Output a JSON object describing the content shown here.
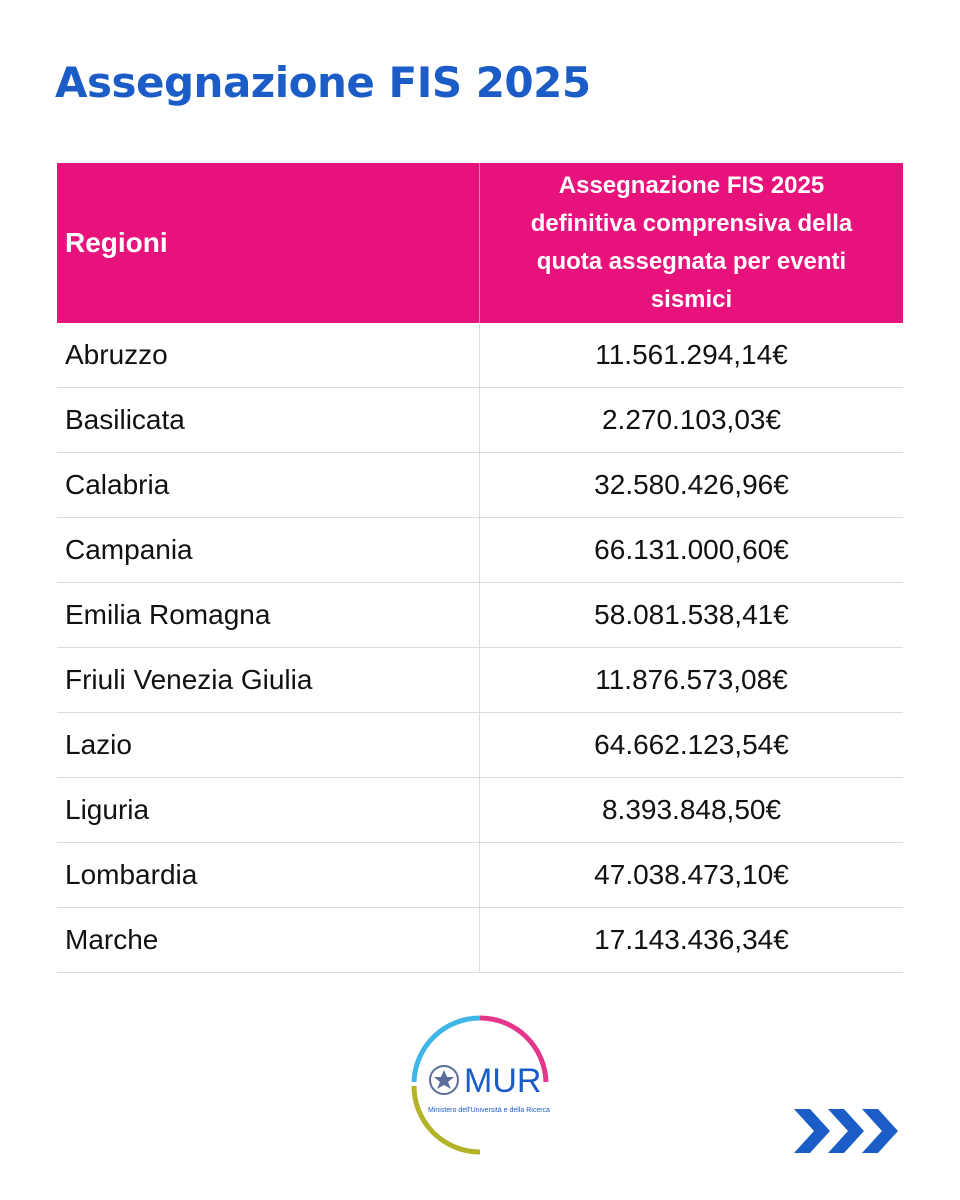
{
  "header": {
    "title": "Assegnazione FIS 2025"
  },
  "table": {
    "columns": [
      "Regioni",
      "Assegnazione FIS 2025 definitiva comprensiva della quota assegnata per eventi sismici"
    ],
    "rows": [
      [
        "Abruzzo",
        "11.561.294,14€"
      ],
      [
        "Basilicata",
        "2.270.103,03€"
      ],
      [
        "Calabria",
        "32.580.426,96€"
      ],
      [
        "Campania",
        "66.131.000,60€"
      ],
      [
        "Emilia Romagna",
        "58.081.538,41€"
      ],
      [
        "Friuli Venezia Giulia",
        "11.876.573,08€"
      ],
      [
        "Lazio",
        "64.662.123,54€"
      ],
      [
        "Liguria",
        "8.393.848,50€"
      ],
      [
        "Lombardia",
        "47.038.473,10€"
      ],
      [
        "Marche",
        "17.143.436,34€"
      ]
    ]
  },
  "footer": {
    "logo_name": "MUR",
    "logo_subtitle": "Ministero dell'Università e della Ricerca"
  }
}
